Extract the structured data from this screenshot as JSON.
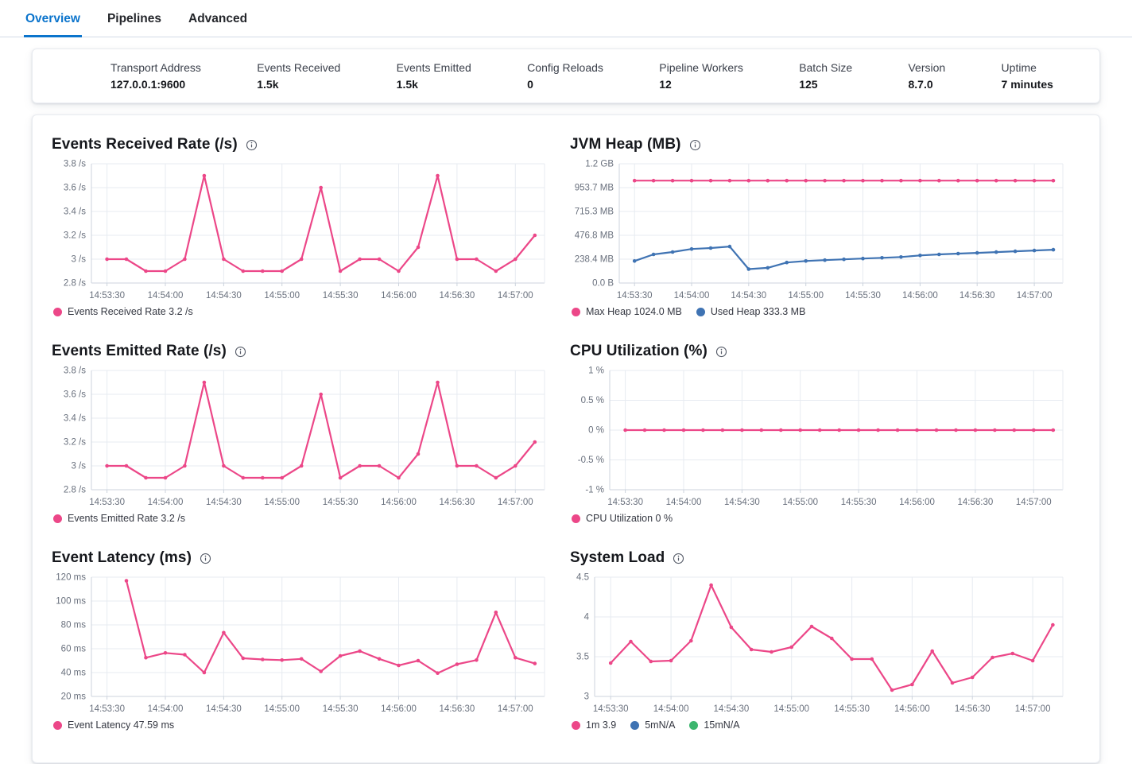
{
  "tabs": [
    {
      "label": "Overview",
      "active": true
    },
    {
      "label": "Pipelines",
      "active": false
    },
    {
      "label": "Advanced",
      "active": false
    }
  ],
  "stats": [
    {
      "label": "Transport Address",
      "value": "127.0.0.1:9600"
    },
    {
      "label": "Events Received",
      "value": "1.5k"
    },
    {
      "label": "Events Emitted",
      "value": "1.5k"
    },
    {
      "label": "Config Reloads",
      "value": "0"
    },
    {
      "label": "Pipeline Workers",
      "value": "12"
    },
    {
      "label": "Batch Size",
      "value": "125"
    },
    {
      "label": "Version",
      "value": "8.7.0"
    },
    {
      "label": "Uptime",
      "value": "7 minutes"
    }
  ],
  "colors": {
    "tab_active": "#0b74cc",
    "series_pink": "#ec4788",
    "series_blue": "#3f73b3",
    "series_green": "#3cb66e",
    "axis_text": "#69707d",
    "gridline": "#e7ebf1",
    "axis_line": "#ccd3dd"
  },
  "icons": {
    "info_icon": "circled-i"
  },
  "chart_data": [
    {
      "type": "line",
      "title": "Events Received Rate (/s)",
      "x_domain": [
        "14:53:22",
        "14:57:15"
      ],
      "xticks": [
        "14:53:30",
        "14:54:00",
        "14:54:30",
        "14:55:00",
        "14:55:30",
        "14:56:00",
        "14:56:30",
        "14:57:00"
      ],
      "ylim": [
        2.8,
        3.8
      ],
      "yticks": [
        {
          "v": 2.8,
          "label": "2.8 /s"
        },
        {
          "v": 3.0,
          "label": "3 /s"
        },
        {
          "v": 3.2,
          "label": "3.2 /s"
        },
        {
          "v": 3.4,
          "label": "3.4 /s"
        },
        {
          "v": 3.6,
          "label": "3.6 /s"
        },
        {
          "v": 3.8,
          "label": "3.8 /s"
        }
      ],
      "x": [
        "14:53:30",
        "14:53:40",
        "14:53:50",
        "14:54:00",
        "14:54:10",
        "14:54:20",
        "14:54:30",
        "14:54:40",
        "14:54:50",
        "14:55:00",
        "14:55:10",
        "14:55:20",
        "14:55:30",
        "14:55:40",
        "14:55:50",
        "14:56:00",
        "14:56:10",
        "14:56:20",
        "14:56:30",
        "14:56:40",
        "14:56:50",
        "14:57:00",
        "14:57:10"
      ],
      "series": [
        {
          "name": "Events Received Rate",
          "color": "#ec4788",
          "values": [
            3,
            3,
            2.9,
            2.9,
            3,
            3.7,
            3,
            2.9,
            2.9,
            2.9,
            3,
            3.6,
            2.9,
            3,
            3,
            2.9,
            3.1,
            3.7,
            3,
            3,
            2.9,
            3,
            3.2
          ]
        }
      ],
      "legend": [
        {
          "label": "Events Received Rate 3.2 /s",
          "color": "#ec4788"
        }
      ]
    },
    {
      "type": "line",
      "title": "JVM Heap (MB)",
      "x_domain": [
        "14:53:22",
        "14:57:15"
      ],
      "xticks": [
        "14:53:30",
        "14:54:00",
        "14:54:30",
        "14:55:00",
        "14:55:30",
        "14:56:00",
        "14:56:30",
        "14:57:00"
      ],
      "ylim": [
        0,
        1192.1
      ],
      "yticks": [
        {
          "v": 0,
          "label": "0.0 B"
        },
        {
          "v": 238.4,
          "label": "238.4 MB"
        },
        {
          "v": 476.8,
          "label": "476.8 MB"
        },
        {
          "v": 715.3,
          "label": "715.3 MB"
        },
        {
          "v": 953.7,
          "label": "953.7 MB"
        },
        {
          "v": 1192.1,
          "label": "1.2 GB"
        }
      ],
      "x": [
        "14:53:30",
        "14:53:40",
        "14:53:50",
        "14:54:00",
        "14:54:10",
        "14:54:20",
        "14:54:30",
        "14:54:40",
        "14:54:50",
        "14:55:00",
        "14:55:10",
        "14:55:20",
        "14:55:30",
        "14:55:40",
        "14:55:50",
        "14:56:00",
        "14:56:10",
        "14:56:20",
        "14:56:30",
        "14:56:40",
        "14:56:50",
        "14:57:00",
        "14:57:10"
      ],
      "series": [
        {
          "name": "Max Heap",
          "color": "#ec4788",
          "values": [
            1024,
            1024,
            1024,
            1024,
            1024,
            1024,
            1024,
            1024,
            1024,
            1024,
            1024,
            1024,
            1024,
            1024,
            1024,
            1024,
            1024,
            1024,
            1024,
            1024,
            1024,
            1024,
            1024
          ]
        },
        {
          "name": "Used Heap",
          "color": "#3f73b3",
          "values": [
            220,
            286,
            310,
            340,
            350,
            365,
            139,
            152,
            205,
            220,
            229,
            237,
            245,
            252,
            260,
            276,
            286,
            294,
            301,
            309,
            317,
            325,
            333.3
          ]
        }
      ],
      "legend": [
        {
          "label": "Max Heap 1024.0 MB",
          "color": "#ec4788"
        },
        {
          "label": "Used Heap 333.3 MB",
          "color": "#3f73b3"
        }
      ]
    },
    {
      "type": "line",
      "title": "Events Emitted Rate (/s)",
      "x_domain": [
        "14:53:22",
        "14:57:15"
      ],
      "xticks": [
        "14:53:30",
        "14:54:00",
        "14:54:30",
        "14:55:00",
        "14:55:30",
        "14:56:00",
        "14:56:30",
        "14:57:00"
      ],
      "ylim": [
        2.8,
        3.8
      ],
      "yticks": [
        {
          "v": 2.8,
          "label": "2.8 /s"
        },
        {
          "v": 3.0,
          "label": "3 /s"
        },
        {
          "v": 3.2,
          "label": "3.2 /s"
        },
        {
          "v": 3.4,
          "label": "3.4 /s"
        },
        {
          "v": 3.6,
          "label": "3.6 /s"
        },
        {
          "v": 3.8,
          "label": "3.8 /s"
        }
      ],
      "x": [
        "14:53:30",
        "14:53:40",
        "14:53:50",
        "14:54:00",
        "14:54:10",
        "14:54:20",
        "14:54:30",
        "14:54:40",
        "14:54:50",
        "14:55:00",
        "14:55:10",
        "14:55:20",
        "14:55:30",
        "14:55:40",
        "14:55:50",
        "14:56:00",
        "14:56:10",
        "14:56:20",
        "14:56:30",
        "14:56:40",
        "14:56:50",
        "14:57:00",
        "14:57:10"
      ],
      "series": [
        {
          "name": "Events Emitted Rate",
          "color": "#ec4788",
          "values": [
            3,
            3,
            2.9,
            2.9,
            3,
            3.7,
            3,
            2.9,
            2.9,
            2.9,
            3,
            3.6,
            2.9,
            3,
            3,
            2.9,
            3.1,
            3.7,
            3,
            3,
            2.9,
            3,
            3.2
          ]
        }
      ],
      "legend": [
        {
          "label": "Events Emitted Rate 3.2 /s",
          "color": "#ec4788"
        }
      ]
    },
    {
      "type": "line",
      "title": "CPU Utilization (%)",
      "x_domain": [
        "14:53:22",
        "14:57:15"
      ],
      "xticks": [
        "14:53:30",
        "14:54:00",
        "14:54:30",
        "14:55:00",
        "14:55:30",
        "14:56:00",
        "14:56:30",
        "14:57:00"
      ],
      "ylim": [
        -1,
        1
      ],
      "yticks": [
        {
          "v": -1,
          "label": "-1 %"
        },
        {
          "v": -0.5,
          "label": "-0.5 %"
        },
        {
          "v": 0,
          "label": "0 %"
        },
        {
          "v": 0.5,
          "label": "0.5 %"
        },
        {
          "v": 1,
          "label": "1 %"
        }
      ],
      "x": [
        "14:53:30",
        "14:53:40",
        "14:53:50",
        "14:54:00",
        "14:54:10",
        "14:54:20",
        "14:54:30",
        "14:54:40",
        "14:54:50",
        "14:55:00",
        "14:55:10",
        "14:55:20",
        "14:55:30",
        "14:55:40",
        "14:55:50",
        "14:56:00",
        "14:56:10",
        "14:56:20",
        "14:56:30",
        "14:56:40",
        "14:56:50",
        "14:57:00",
        "14:57:10"
      ],
      "series": [
        {
          "name": "CPU Utilization",
          "color": "#ec4788",
          "values": [
            0,
            0,
            0,
            0,
            0,
            0,
            0,
            0,
            0,
            0,
            0,
            0,
            0,
            0,
            0,
            0,
            0,
            0,
            0,
            0,
            0,
            0,
            0
          ]
        }
      ],
      "legend": [
        {
          "label": "CPU Utilization 0 %",
          "color": "#ec4788"
        }
      ]
    },
    {
      "type": "line",
      "title": "Event Latency (ms)",
      "x_domain": [
        "14:53:22",
        "14:57:15"
      ],
      "xticks": [
        "14:53:30",
        "14:54:00",
        "14:54:30",
        "14:55:00",
        "14:55:30",
        "14:56:00",
        "14:56:30",
        "14:57:00"
      ],
      "ylim": [
        20,
        120
      ],
      "yticks": [
        {
          "v": 20,
          "label": "20 ms"
        },
        {
          "v": 40,
          "label": "40 ms"
        },
        {
          "v": 60,
          "label": "60 ms"
        },
        {
          "v": 80,
          "label": "80 ms"
        },
        {
          "v": 100,
          "label": "100 ms"
        },
        {
          "v": 120,
          "label": "120 ms"
        }
      ],
      "x": [
        "14:53:40",
        "14:53:50",
        "14:54:00",
        "14:54:10",
        "14:54:20",
        "14:54:30",
        "14:54:40",
        "14:54:50",
        "14:55:00",
        "14:55:10",
        "14:55:20",
        "14:55:30",
        "14:55:40",
        "14:55:50",
        "14:56:00",
        "14:56:10",
        "14:56:20",
        "14:56:30",
        "14:56:40",
        "14:56:50",
        "14:57:00",
        "14:57:10"
      ],
      "series": [
        {
          "name": "Event Latency",
          "color": "#ec4788",
          "values": [
            117,
            52.5,
            56.5,
            55,
            40,
            73.5,
            52,
            51,
            50.5,
            51.5,
            41,
            54,
            58,
            51.5,
            46,
            50,
            39.5,
            47,
            50.5,
            90.5,
            52.5,
            47.59
          ]
        }
      ],
      "legend": [
        {
          "label": "Event Latency 47.59 ms",
          "color": "#ec4788"
        }
      ]
    },
    {
      "type": "line",
      "title": "System Load",
      "x_domain": [
        "14:53:22",
        "14:57:15"
      ],
      "xticks": [
        "14:53:30",
        "14:54:00",
        "14:54:30",
        "14:55:00",
        "14:55:30",
        "14:56:00",
        "14:56:30",
        "14:57:00"
      ],
      "ylim": [
        3,
        4.5
      ],
      "yticks": [
        {
          "v": 3,
          "label": "3"
        },
        {
          "v": 3.5,
          "label": "3.5"
        },
        {
          "v": 4,
          "label": "4"
        },
        {
          "v": 4.5,
          "label": "4.5"
        }
      ],
      "x": [
        "14:53:30",
        "14:53:40",
        "14:53:50",
        "14:54:00",
        "14:54:10",
        "14:54:20",
        "14:54:30",
        "14:54:40",
        "14:54:50",
        "14:55:00",
        "14:55:10",
        "14:55:20",
        "14:55:30",
        "14:55:40",
        "14:55:50",
        "14:56:00",
        "14:56:10",
        "14:56:20",
        "14:56:30",
        "14:56:40",
        "14:56:50",
        "14:57:00",
        "14:57:10"
      ],
      "series": [
        {
          "name": "1m",
          "color": "#ec4788",
          "values": [
            3.42,
            3.69,
            3.44,
            3.45,
            3.7,
            4.4,
            3.87,
            3.59,
            3.56,
            3.62,
            3.88,
            3.73,
            3.47,
            3.47,
            3.08,
            3.15,
            3.57,
            3.17,
            3.24,
            3.49,
            3.54,
            3.45,
            3.9
          ]
        }
      ],
      "legend": [
        {
          "label": "1m 3.9",
          "color": "#ec4788"
        },
        {
          "label": "5mN/A",
          "color": "#3f73b3"
        },
        {
          "label": "15mN/A",
          "color": "#3cb66e"
        }
      ]
    }
  ]
}
